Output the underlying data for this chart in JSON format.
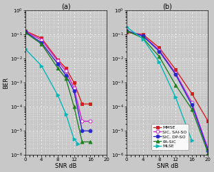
{
  "title_a": "(a)",
  "title_b": "(b)",
  "xlabel": "SNR dB",
  "ylabel": "BER",
  "ylim": [
    1e-06,
    1.0
  ],
  "xlim_a": [
    0,
    20
  ],
  "xlim_b": [
    0,
    20
  ],
  "xticks": [
    0,
    4,
    8,
    12,
    16,
    20
  ],
  "legend_labels": [
    "MMSE",
    "SIC, SAI-SO",
    "SIC, DP-SO",
    "PA-SIC",
    "MLSE"
  ],
  "colors": [
    "#d42020",
    "#d020d0",
    "#2828cc",
    "#208020",
    "#00b8b8"
  ],
  "markers": [
    "s",
    "o",
    "o",
    "^",
    ">"
  ],
  "mfc": [
    "#d42020",
    "white",
    "#2828cc",
    "#208020",
    "#00b8b8"
  ],
  "snr_a": {
    "MMSE": [
      0,
      4,
      8,
      10,
      12,
      14,
      16
    ],
    "SIC_SAI": [
      0,
      4,
      8,
      10,
      12,
      14,
      16
    ],
    "SIC_DP": [
      0,
      4,
      8,
      10,
      12,
      14,
      16
    ],
    "PA_SIC": [
      0,
      4,
      8,
      10,
      12,
      14,
      16
    ],
    "MLSE": [
      0,
      4,
      8,
      10,
      12,
      13
    ]
  },
  "ber_a": {
    "MMSE": [
      0.14,
      0.07,
      0.009,
      0.004,
      0.001,
      0.00013,
      0.00013
    ],
    "SIC_SAI": [
      0.13,
      0.06,
      0.008,
      0.003,
      0.0006,
      2.5e-05,
      2.5e-05
    ],
    "SIC_DP": [
      0.13,
      0.045,
      0.006,
      0.002,
      0.00045,
      1e-05,
      1e-05
    ],
    "PA_SIC": [
      0.12,
      0.04,
      0.004,
      0.0015,
      0.0001,
      3.5e-06,
      3.5e-06
    ],
    "MLSE": [
      0.025,
      0.005,
      0.0003,
      5e-05,
      4.5e-06,
      3e-06
    ]
  },
  "snr_b": {
    "MMSE": [
      0,
      4,
      8,
      12,
      16,
      20
    ],
    "SIC_SAI": [
      0,
      4,
      8,
      12,
      16,
      20
    ],
    "SIC_DP": [
      0,
      4,
      8,
      12,
      16,
      20
    ],
    "PA_SIC": [
      0,
      4,
      8,
      12,
      16,
      20
    ],
    "MLSE": [
      0,
      4,
      8,
      12,
      16
    ]
  },
  "ber_b": {
    "MMSE": [
      0.12,
      0.1,
      0.028,
      0.0035,
      0.00035,
      2.5e-05
    ],
    "SIC_SAI": [
      0.14,
      0.09,
      0.022,
      0.0025,
      0.00015,
      1.8e-06
    ],
    "SIC_DP": [
      0.14,
      0.085,
      0.02,
      0.0022,
      0.00012,
      1.5e-06
    ],
    "PA_SIC": [
      0.14,
      0.07,
      0.012,
      0.0008,
      8e-05,
      1.2e-06
    ],
    "MLSE": [
      0.2,
      0.065,
      0.007,
      0.00025,
      4e-06
    ]
  },
  "bg_color": "#c8c8c8",
  "plot_bg": "#c8c8c8",
  "grid_color": "#f0f0f0",
  "linewidth": 1.0,
  "markersize": 3.5
}
